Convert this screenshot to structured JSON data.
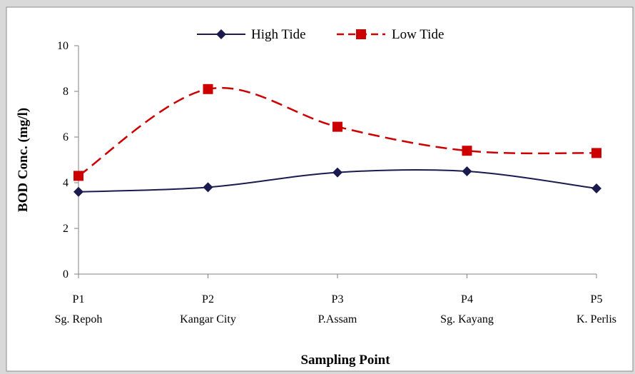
{
  "chart_data": {
    "type": "line",
    "categories": [
      {
        "code": "P1",
        "name": "Sg. Repoh"
      },
      {
        "code": "P2",
        "name": "Kangar City"
      },
      {
        "code": "P3",
        "name": "P.Assam"
      },
      {
        "code": "P4",
        "name": "Sg. Kayang"
      },
      {
        "code": "P5",
        "name": "K. Perlis"
      }
    ],
    "series": [
      {
        "name": "High Tide",
        "values": [
          3.6,
          3.8,
          4.45,
          4.5,
          3.75
        ],
        "color": "#1a1a4e",
        "marker": "diamond",
        "line": "solid"
      },
      {
        "name": "Low Tide",
        "values": [
          4.3,
          8.1,
          6.45,
          5.4,
          5.3
        ],
        "color": "#cc0000",
        "marker": "square",
        "line": "dashed"
      }
    ],
    "xlabel": "Sampling Point",
    "ylabel": "BOD Conc. (mg/l)",
    "ylim": [
      0,
      10
    ],
    "yticks": [
      0,
      2,
      4,
      6,
      8,
      10
    ],
    "legend_position": "top-center",
    "grid": false
  }
}
